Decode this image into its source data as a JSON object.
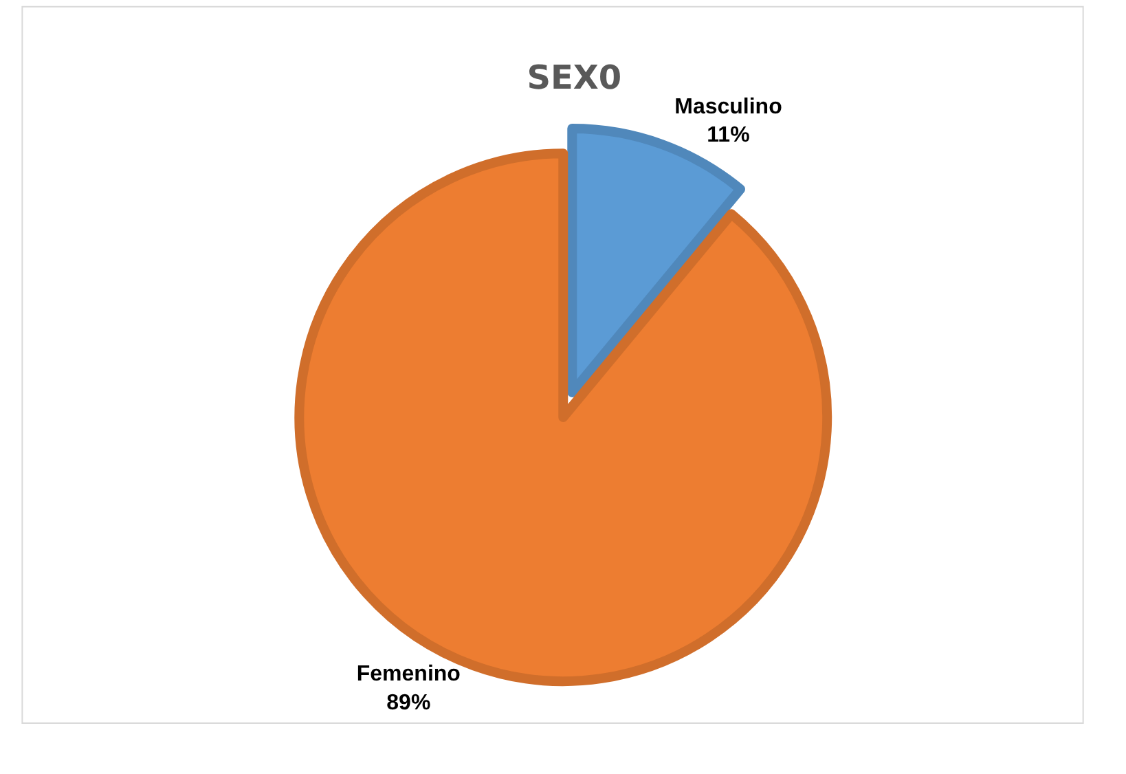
{
  "chart_data": {
    "type": "pie",
    "title": "SEX0",
    "categories": [
      "Masculino",
      "Femenino"
    ],
    "values": [
      11,
      89
    ],
    "colors": [
      "#5b9bd5",
      "#ed7d31"
    ],
    "value_labels": [
      "11%",
      "89%"
    ],
    "legend": false
  }
}
